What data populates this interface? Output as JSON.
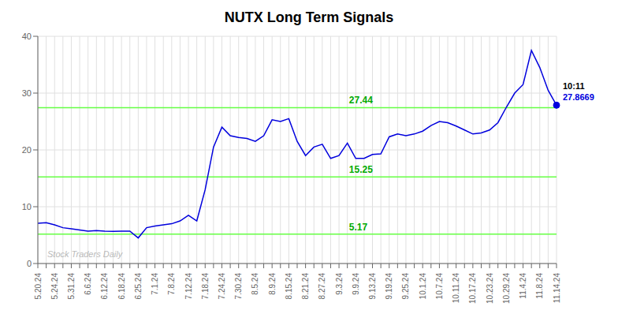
{
  "chart_data": {
    "type": "line",
    "title": "NUTX Long Term Signals",
    "color": "#0000dd",
    "grid": true,
    "ylim": [
      0,
      40
    ],
    "yticks": [
      0,
      10,
      20,
      30,
      40
    ],
    "categories": [
      "5.20.24",
      null,
      "5.24.24",
      null,
      "5.31.24",
      null,
      "6.6.24",
      null,
      "6.12.24",
      null,
      "6.18.24",
      null,
      "6.25.24",
      null,
      "7.1.24",
      null,
      "7.8.24",
      null,
      "7.12.24",
      null,
      "7.18.24",
      null,
      "7.24.24",
      null,
      "7.30.24",
      null,
      "8.5.24",
      null,
      "8.9.24",
      null,
      "8.15.24",
      null,
      "8.21.24",
      null,
      "8.27.24",
      null,
      "9.3.24",
      null,
      "9.9.24",
      null,
      "9.13.24",
      null,
      "9.19.24",
      null,
      "9.25.24",
      null,
      "10.1.24",
      null,
      "10.7.24",
      null,
      "10.11.24",
      null,
      "10.17.24",
      null,
      "10.23.24",
      null,
      "10.29.24",
      null,
      "11.4.24",
      null,
      "11.8.24",
      null,
      "11.14.24"
    ],
    "values": [
      7.1,
      7.2,
      6.8,
      6.3,
      6.1,
      5.9,
      5.7,
      5.8,
      5.7,
      5.65,
      5.7,
      5.7,
      4.5,
      6.3,
      6.6,
      6.8,
      7.0,
      7.5,
      8.5,
      7.5,
      13.0,
      20.5,
      24.0,
      22.5,
      22.2,
      22.0,
      21.5,
      22.5,
      25.3,
      25.0,
      25.5,
      21.5,
      19.0,
      20.5,
      21.0,
      18.5,
      19.0,
      21.2,
      18.5,
      18.5,
      19.2,
      19.3,
      22.3,
      22.8,
      22.5,
      22.8,
      23.3,
      24.3,
      25.0,
      24.8,
      24.2,
      23.5,
      22.8,
      23.0,
      23.5,
      24.8,
      27.5,
      30.0,
      31.5,
      37.5,
      34.5,
      30.5,
      27.8669
    ],
    "hlines": [
      {
        "value": 5.17,
        "label": "5.17",
        "color": "#66ff44",
        "label_color": "#00aa00"
      },
      {
        "value": 15.25,
        "label": "15.25",
        "color": "#66ff44",
        "label_color": "#00aa00"
      },
      {
        "value": 27.44,
        "label": "27.44",
        "color": "#66ff44",
        "label_color": "#00aa00"
      }
    ],
    "annotations": [
      {
        "x": "11.14.24",
        "y": 27.8669,
        "color": "#0000dd",
        "texts": [
          {
            "text": "10:11",
            "color": "#000000"
          },
          {
            "text": "27.8669",
            "color": "#0000dd"
          }
        ]
      }
    ],
    "watermark": {
      "text": "Stock Traders Daily",
      "color": "#aaaaaa"
    }
  }
}
